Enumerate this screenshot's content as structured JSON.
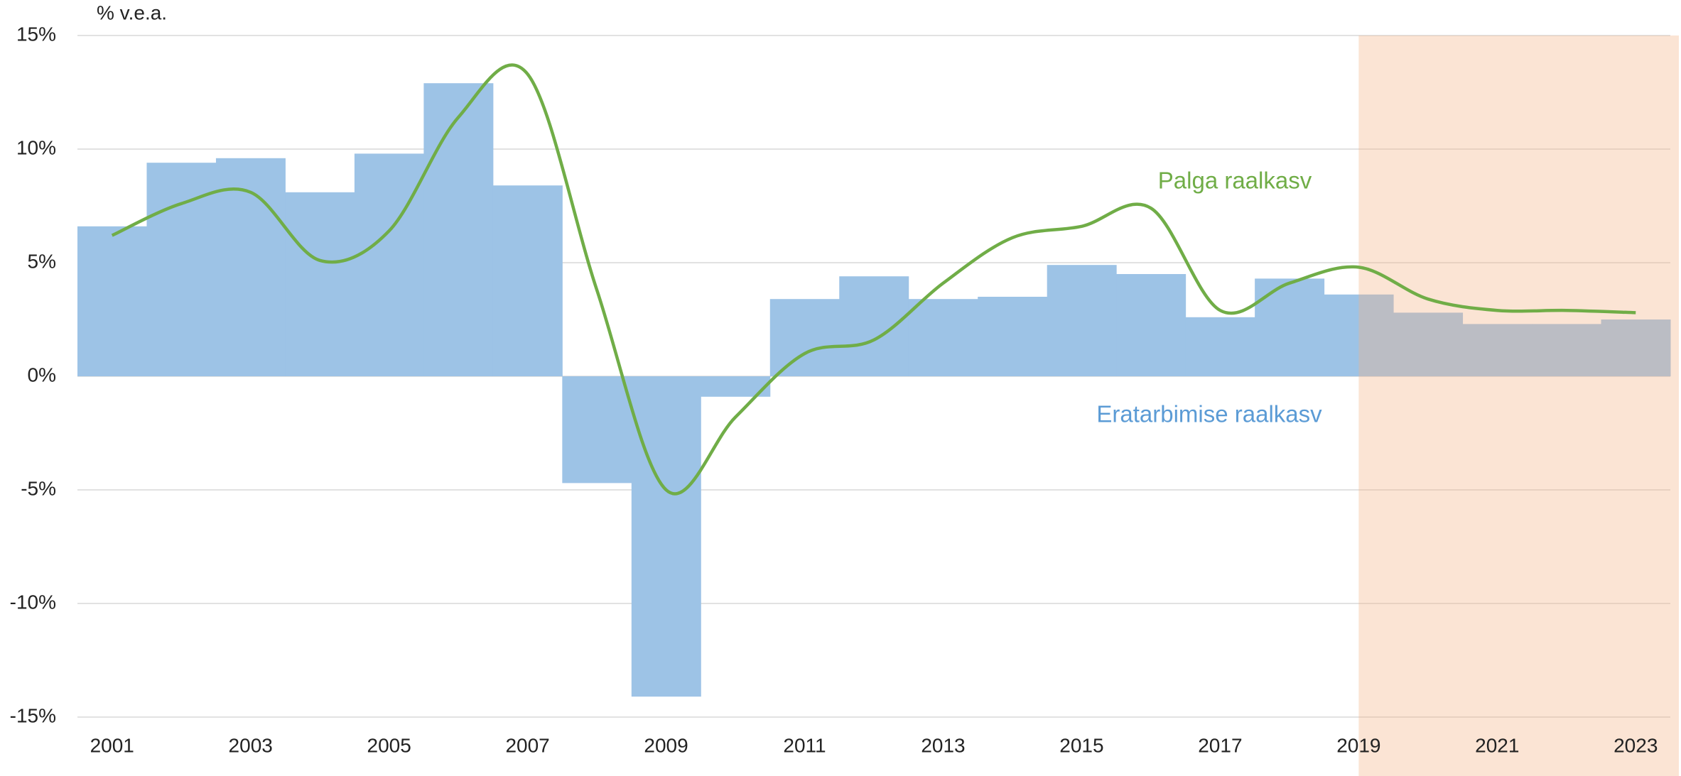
{
  "chart_data": {
    "type": "bar",
    "y_axis_label": "% v.e.a.",
    "categories": [
      "2001",
      null,
      "2003",
      null,
      "2005",
      null,
      "2007",
      null,
      "2009",
      null,
      "2011",
      null,
      "2013",
      null,
      "2015",
      null,
      "2017",
      null,
      "2019",
      null,
      "2021",
      null,
      "2023"
    ],
    "series": [
      {
        "name": "Eratarbimise raalkasv",
        "type": "bar",
        "color": "#9dc3e6",
        "label_color": "#5b9bd5",
        "values": [
          6.6,
          9.4,
          9.6,
          8.1,
          9.8,
          12.9,
          8.4,
          -4.7,
          -14.1,
          -0.9,
          3.4,
          4.4,
          3.4,
          3.5,
          4.9,
          4.5,
          2.6,
          4.3,
          3.6,
          2.8,
          2.3,
          2.3,
          2.5
        ]
      },
      {
        "name": "Palga raalkasv",
        "type": "line",
        "color": "#70ad47",
        "label_color": "#70ad47",
        "values": [
          6.2,
          7.6,
          8.1,
          5.1,
          6.4,
          11.4,
          13.3,
          3.8,
          -5.0,
          -1.8,
          1.0,
          1.6,
          4.1,
          6.1,
          6.6,
          7.4,
          2.9,
          4.1,
          4.8,
          3.4,
          2.9,
          2.9,
          2.8
        ]
      }
    ],
    "ylim": [
      -15,
      15
    ],
    "yticks": [
      {
        "value": -15,
        "label": "-15%"
      },
      {
        "value": -10,
        "label": "-10%"
      },
      {
        "value": -5,
        "label": "-5%"
      },
      {
        "value": 0,
        "label": "0%"
      },
      {
        "value": 5,
        "label": "5%"
      },
      {
        "value": 10,
        "label": "10%"
      },
      {
        "value": 15,
        "label": "15%"
      }
    ],
    "grid": true,
    "shaded_from_category": "2019",
    "shade_color": "#f4b183"
  }
}
